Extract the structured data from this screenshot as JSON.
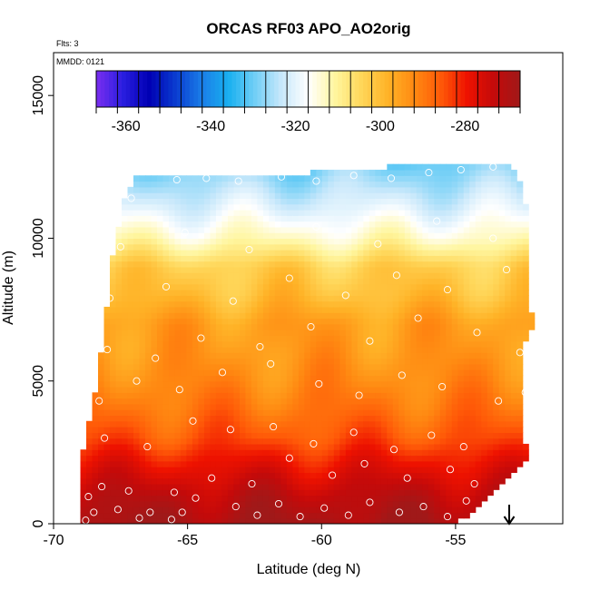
{
  "chart_data": {
    "type": "heatmap",
    "title": "ORCAS RF03 APO_AO2orig",
    "subtitle_flights": "Flts: 3",
    "annotation_date": "MMDD: 0121",
    "xlabel": "Latitude (deg N)",
    "ylabel": "Altitude (m)",
    "xlim": [
      -70,
      -51
    ],
    "ylim": [
      0,
      16500
    ],
    "xticks": [
      -70,
      -65,
      -60,
      -55
    ],
    "xtick_labels": [
      "-70",
      "-65",
      "-60",
      "-55"
    ],
    "yticks": [
      0,
      5000,
      10000,
      15000
    ],
    "ytick_labels": [
      "0",
      "5000",
      "10000",
      "15000"
    ],
    "colorbar": {
      "range": [
        -367,
        -267
      ],
      "ticks": [
        -360,
        -340,
        -320,
        -300,
        -280
      ],
      "tick_labels": [
        "-360",
        "-340",
        "-320",
        "-300",
        "-280"
      ],
      "colors": [
        "#7a2ef0",
        "#2a1ee0",
        "#0000b4",
        "#0a3cd0",
        "#1a7ee8",
        "#19b0f0",
        "#72cff6",
        "#c8e8fb",
        "#ffffff",
        "#fff6a0",
        "#ffd75a",
        "#ffb327",
        "#ff8a12",
        "#ff5a08",
        "#ee1200",
        "#c40a0a",
        "#a01919"
      ]
    },
    "curtain_extent_lat": [
      -69,
      -51.8
    ],
    "curtain_top_altitude_m": [
      [
        -69,
        2100
      ],
      [
        -68.4,
        4900
      ],
      [
        -68.1,
        7000
      ],
      [
        -67.8,
        9300
      ],
      [
        -67.3,
        11600
      ],
      [
        -66.9,
        12200
      ],
      [
        -66,
        12200
      ],
      [
        -60.5,
        12300
      ],
      [
        -56,
        12600
      ],
      [
        -53,
        12700
      ],
      [
        -52.5,
        11800
      ],
      [
        -52.2,
        10400
      ],
      [
        -52.2,
        7500
      ],
      [
        -52,
        7100
      ],
      [
        -52.5,
        6200
      ],
      [
        -52.5,
        3200
      ],
      [
        -52.3,
        2400
      ],
      [
        -53,
        1600
      ],
      [
        -54,
        700
      ],
      [
        -55,
        0
      ]
    ],
    "altitude_profile_of_apo": [
      [
        0,
        -268
      ],
      [
        1000,
        -272
      ],
      [
        2000,
        -278
      ],
      [
        3000,
        -285
      ],
      [
        4000,
        -289
      ],
      [
        5000,
        -292
      ],
      [
        6000,
        -294
      ],
      [
        7000,
        -295
      ],
      [
        8000,
        -300
      ],
      [
        9000,
        -303
      ],
      [
        10000,
        -313
      ],
      [
        11000,
        -320
      ],
      [
        12000,
        -326
      ],
      [
        12700,
        -330
      ]
    ],
    "sample_points": [
      [
        -68.8,
        120
      ],
      [
        -68.5,
        400
      ],
      [
        -67.6,
        500
      ],
      [
        -66.8,
        200
      ],
      [
        -66.4,
        400
      ],
      [
        -65.6,
        150
      ],
      [
        -65.2,
        400
      ],
      [
        -64.7,
        900
      ],
      [
        -63.2,
        600
      ],
      [
        -62.4,
        300
      ],
      [
        -61.6,
        700
      ],
      [
        -60.8,
        250
      ],
      [
        -59.9,
        550
      ],
      [
        -59,
        300
      ],
      [
        -58.2,
        750
      ],
      [
        -57.1,
        400
      ],
      [
        -56.2,
        600
      ],
      [
        -55.3,
        250
      ],
      [
        -54.6,
        800
      ],
      [
        -53.9,
        500
      ],
      [
        -68.7,
        950
      ],
      [
        -68.2,
        1300
      ],
      [
        -67.2,
        1150
      ],
      [
        -65.5,
        1100
      ],
      [
        -64.1,
        1600
      ],
      [
        -62.6,
        1400
      ],
      [
        -61.2,
        2300
      ],
      [
        -59.6,
        1700
      ],
      [
        -58.4,
        2100
      ],
      [
        -56.8,
        1600
      ],
      [
        -55.2,
        1900
      ],
      [
        -54.3,
        1400
      ],
      [
        -68.1,
        3000
      ],
      [
        -66.5,
        2700
      ],
      [
        -64.8,
        3600
      ],
      [
        -63.4,
        3300
      ],
      [
        -61.8,
        3400
      ],
      [
        -60.3,
        2800
      ],
      [
        -58.8,
        3200
      ],
      [
        -57.3,
        2600
      ],
      [
        -55.9,
        3100
      ],
      [
        -54.7,
        2700
      ],
      [
        -68.3,
        4300
      ],
      [
        -66.9,
        5000
      ],
      [
        -65.3,
        4700
      ],
      [
        -63.7,
        5300
      ],
      [
        -61.9,
        5600
      ],
      [
        -60.1,
        4900
      ],
      [
        -58.6,
        4500
      ],
      [
        -57,
        5200
      ],
      [
        -55.5,
        4800
      ],
      [
        -53.4,
        4300
      ],
      [
        -52.4,
        4600
      ],
      [
        -68,
        6100
      ],
      [
        -66.2,
        5800
      ],
      [
        -64.5,
        6500
      ],
      [
        -62.3,
        6200
      ],
      [
        -60.4,
        6900
      ],
      [
        -58.2,
        6400
      ],
      [
        -56.4,
        7200
      ],
      [
        -54.2,
        6700
      ],
      [
        -52.6,
        6000
      ],
      [
        -67.9,
        7900
      ],
      [
        -65.8,
        8300
      ],
      [
        -63.3,
        7800
      ],
      [
        -61.2,
        8600
      ],
      [
        -59.1,
        8000
      ],
      [
        -57.2,
        8700
      ],
      [
        -55.3,
        8200
      ],
      [
        -53.1,
        8900
      ],
      [
        -67.5,
        9700
      ],
      [
        -65.1,
        10200
      ],
      [
        -62.7,
        9600
      ],
      [
        -60.2,
        10400
      ],
      [
        -57.9,
        9800
      ],
      [
        -55.7,
        10600
      ],
      [
        -53.6,
        10000
      ],
      [
        -67.1,
        11400
      ],
      [
        -65.4,
        12050
      ],
      [
        -64.3,
        12100
      ],
      [
        -63.1,
        12000
      ],
      [
        -61.5,
        12150
      ],
      [
        -60.2,
        12000
      ],
      [
        -58.8,
        12200
      ],
      [
        -57.4,
        12100
      ],
      [
        -56,
        12300
      ],
      [
        -54.8,
        12400
      ],
      [
        -53.6,
        12500
      ],
      [
        -52.7,
        12550
      ]
    ]
  }
}
